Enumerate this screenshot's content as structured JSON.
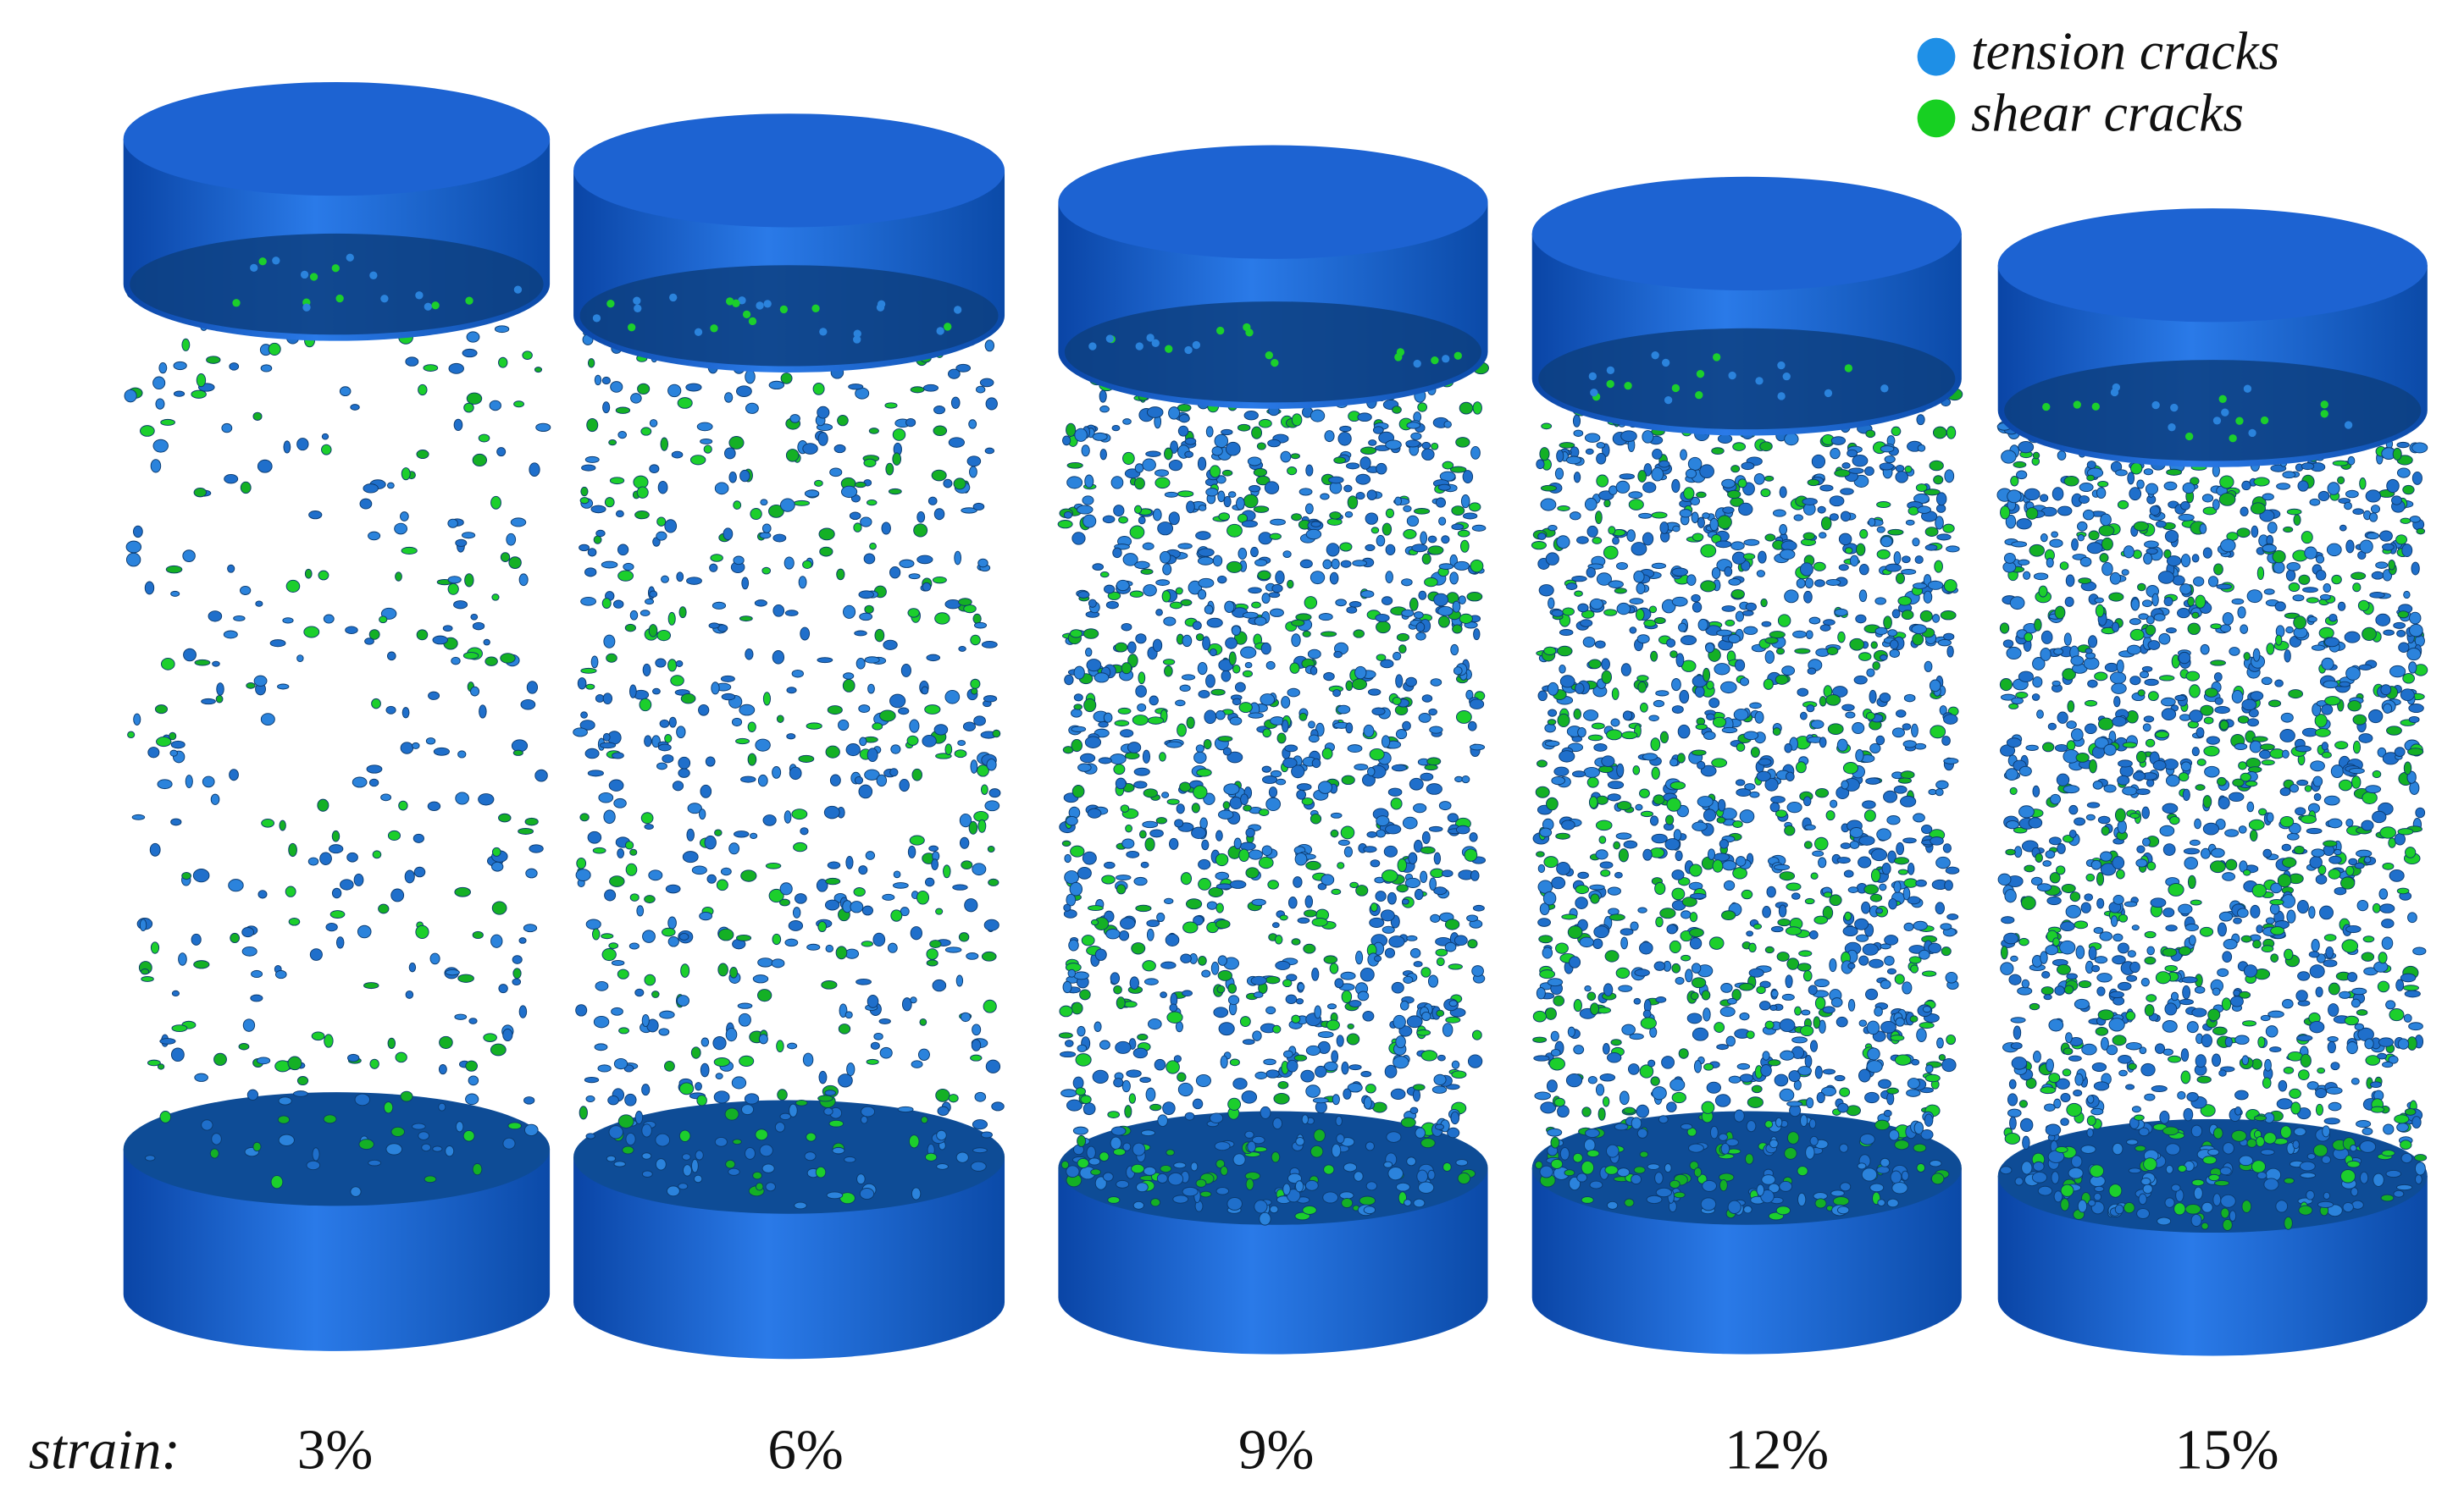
{
  "legend": [
    "tension cracks",
    "shear cracks"
  ],
  "strain_label": "strain:",
  "specimens": [
    "3%",
    "6%",
    "9%",
    "12%",
    "15%"
  ]
}
